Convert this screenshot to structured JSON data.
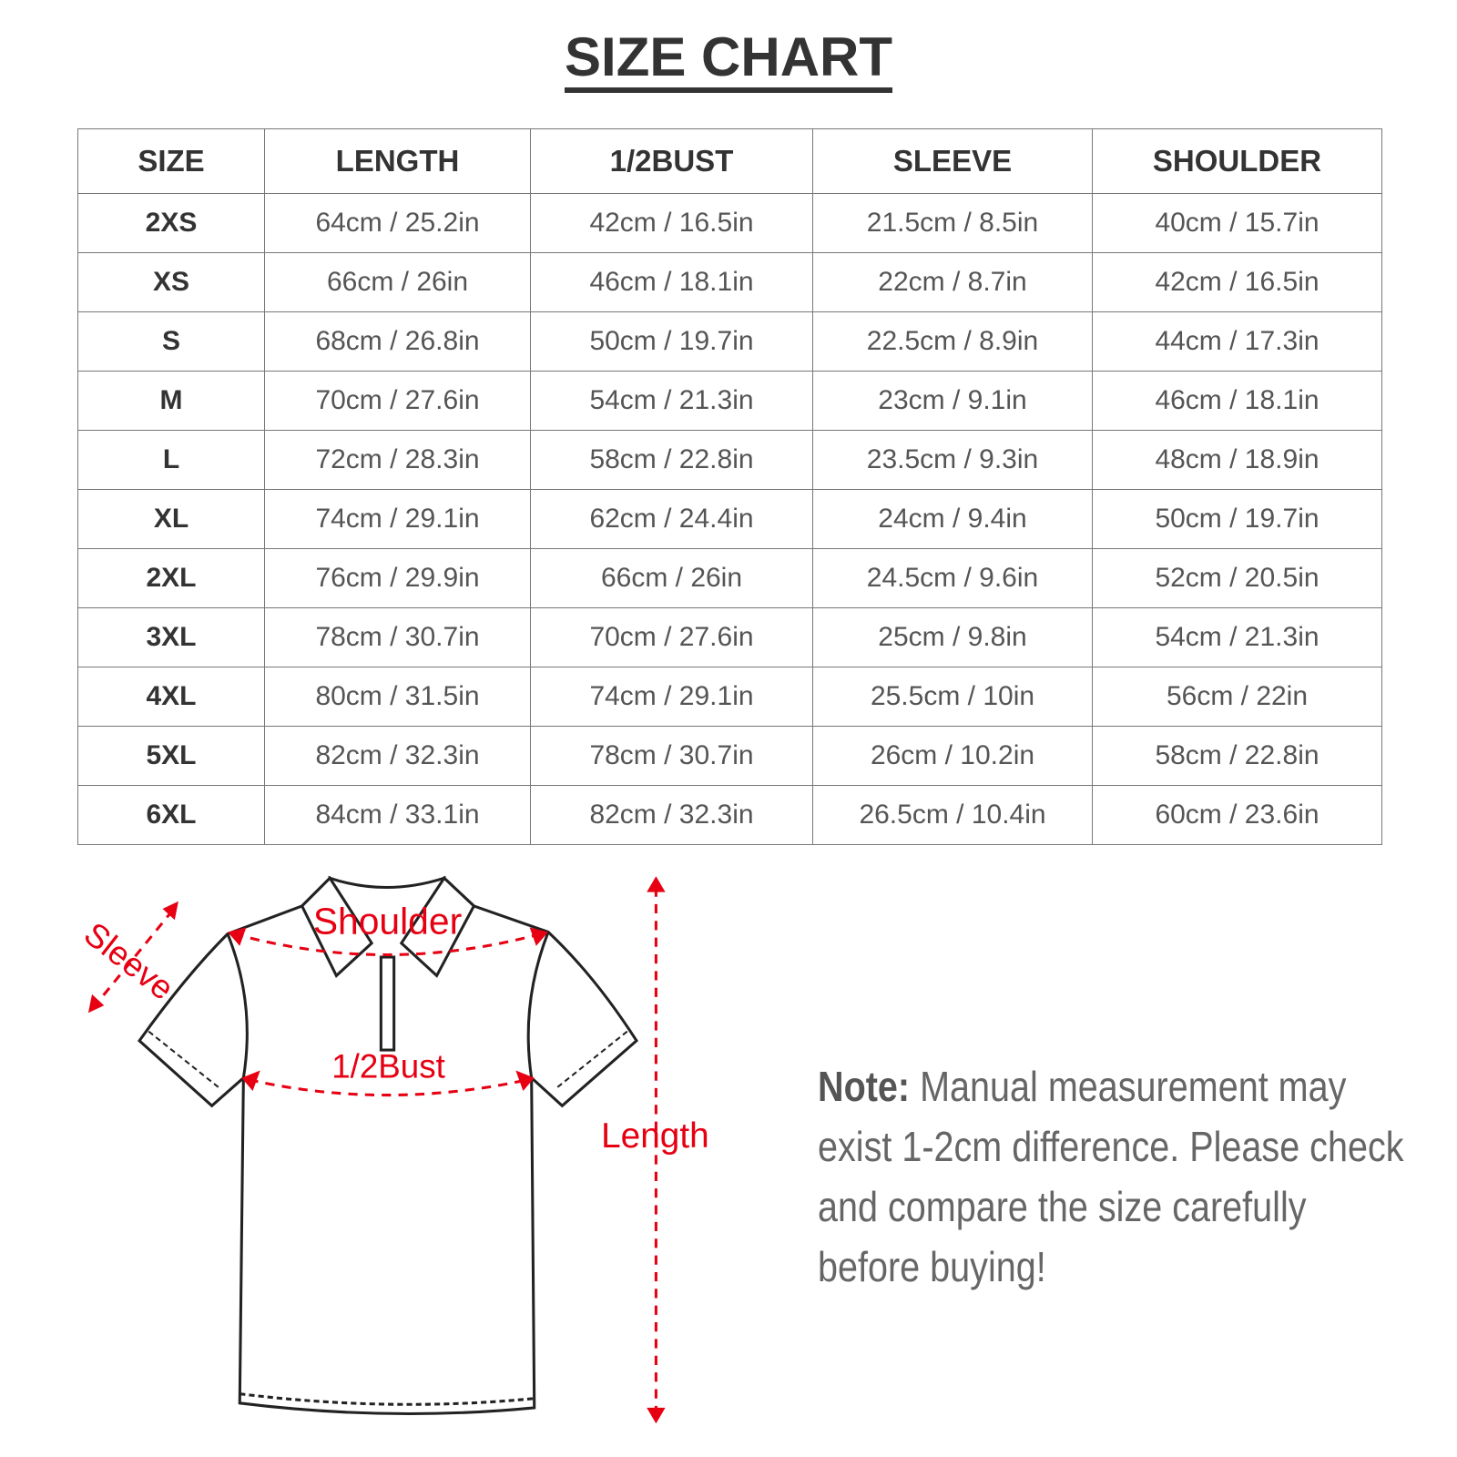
{
  "title": "SIZE CHART",
  "table": {
    "headers": [
      "SIZE",
      "LENGTH",
      "1/2BUST",
      "SLEEVE",
      "SHOULDER"
    ],
    "rows": [
      [
        "2XS",
        "64cm / 25.2in",
        "42cm / 16.5in",
        "21.5cm / 8.5in",
        "40cm / 15.7in"
      ],
      [
        "XS",
        "66cm / 26in",
        "46cm / 18.1in",
        "22cm / 8.7in",
        "42cm / 16.5in"
      ],
      [
        "S",
        "68cm / 26.8in",
        "50cm / 19.7in",
        "22.5cm / 8.9in",
        "44cm / 17.3in"
      ],
      [
        "M",
        "70cm / 27.6in",
        "54cm / 21.3in",
        "23cm / 9.1in",
        "46cm / 18.1in"
      ],
      [
        "L",
        "72cm / 28.3in",
        "58cm / 22.8in",
        "23.5cm / 9.3in",
        "48cm / 18.9in"
      ],
      [
        "XL",
        "74cm / 29.1in",
        "62cm / 24.4in",
        "24cm / 9.4in",
        "50cm / 19.7in"
      ],
      [
        "2XL",
        "76cm / 29.9in",
        "66cm / 26in",
        "24.5cm / 9.6in",
        "52cm / 20.5in"
      ],
      [
        "3XL",
        "78cm / 30.7in",
        "70cm / 27.6in",
        "25cm / 9.8in",
        "54cm / 21.3in"
      ],
      [
        "4XL",
        "80cm / 31.5in",
        "74cm / 29.1in",
        "25.5cm / 10in",
        "56cm / 22in"
      ],
      [
        "5XL",
        "82cm / 32.3in",
        "78cm / 30.7in",
        "26cm / 10.2in",
        "58cm / 22.8in"
      ],
      [
        "6XL",
        "84cm / 33.1in",
        "82cm / 32.3in",
        "26.5cm / 10.4in",
        "60cm / 23.6in"
      ]
    ]
  },
  "diagram": {
    "sleeve": "Sleeve",
    "shoulder": "Shoulder",
    "bust": "1/2Bust",
    "length": "Length",
    "accent": "#e60012"
  },
  "note": {
    "label": "Note:",
    "text": " Manual measurement may exist 1-2cm difference. Please check and compare the size carefully before buying!"
  }
}
